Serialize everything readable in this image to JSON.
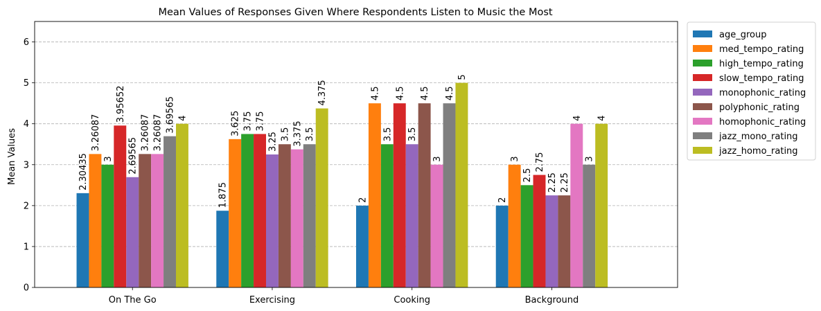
{
  "chart_data": {
    "type": "bar",
    "title": "Mean Values of Responses Given Where Respondents Listen to Music the Most",
    "xlabel": "",
    "ylabel": "Mean Values",
    "ylim": [
      0,
      6.5
    ],
    "yticks": [
      "0",
      "1",
      "2",
      "3",
      "4",
      "5",
      "6"
    ],
    "grid": "horizontal dashed",
    "legend_position": "outside right, top",
    "categories": [
      "On The Go",
      "Exercising",
      "Cooking",
      "Background"
    ],
    "series": [
      {
        "name": "age_group",
        "color": "#1f77b4",
        "values": [
          2.30435,
          1.875,
          2,
          2
        ],
        "labels": [
          "2.30435",
          "1.875",
          "2",
          "2"
        ]
      },
      {
        "name": "med_tempo_rating",
        "color": "#ff7f0e",
        "values": [
          3.26087,
          3.625,
          4.5,
          3
        ],
        "labels": [
          "3.26087",
          "3.625",
          "4.5",
          "3"
        ]
      },
      {
        "name": "high_tempo_rating",
        "color": "#2ca02c",
        "values": [
          3,
          3.75,
          3.5,
          2.5
        ],
        "labels": [
          "3",
          "3.75",
          "3.5",
          "2.5"
        ]
      },
      {
        "name": "slow_tempo_rating",
        "color": "#d62728",
        "values": [
          3.95652,
          3.75,
          4.5,
          2.75
        ],
        "labels": [
          "3.95652",
          "3.75",
          "4.5",
          "2.75"
        ]
      },
      {
        "name": "monophonic_rating",
        "color": "#9467bd",
        "values": [
          2.69565,
          3.25,
          3.5,
          2.25
        ],
        "labels": [
          "2.69565",
          "3.25",
          "3.5",
          "2.25"
        ]
      },
      {
        "name": "polyphonic_rating",
        "color": "#8c564b",
        "values": [
          3.26087,
          3.5,
          4.5,
          2.25
        ],
        "labels": [
          "3.26087",
          "3.5",
          "4.5",
          "2.25"
        ]
      },
      {
        "name": "homophonic_rating",
        "color": "#e377c2",
        "values": [
          3.26087,
          3.375,
          3,
          4
        ],
        "labels": [
          "3.26087",
          "3.375",
          "3",
          "4"
        ]
      },
      {
        "name": "jazz_mono_rating",
        "color": "#7f7f7f",
        "values": [
          3.69565,
          3.5,
          4.5,
          3
        ],
        "labels": [
          "3.69565",
          "3.5",
          "4.5",
          "3"
        ]
      },
      {
        "name": "jazz_homo_rating",
        "color": "#bcbd22",
        "values": [
          4,
          4.375,
          5,
          4
        ],
        "labels": [
          "4",
          "4.375",
          "5",
          "4"
        ]
      }
    ]
  }
}
